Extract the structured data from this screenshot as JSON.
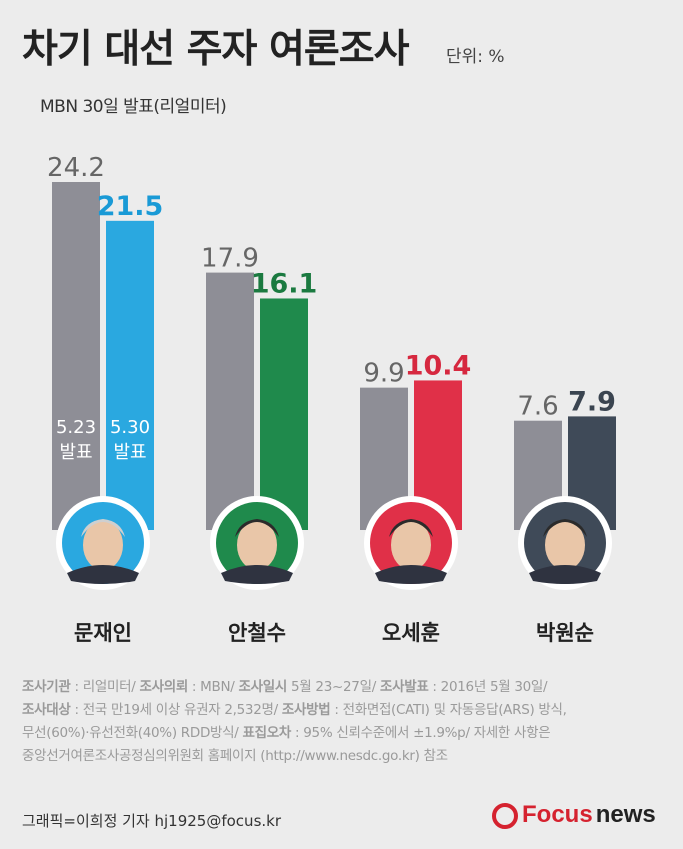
{
  "header": {
    "title": "차기 대선 주자 여론조사",
    "unit": "단위: %",
    "subtitle": "MBN 30일 발표(리얼미터)"
  },
  "chart_data": {
    "type": "bar",
    "categories": [
      "문재인",
      "안철수",
      "오세훈",
      "박원순"
    ],
    "series": [
      {
        "name": "5.23 발표",
        "values": [
          24.2,
          17.9,
          9.9,
          7.6
        ],
        "color": "#8e8e96"
      },
      {
        "name": "5.30 발표",
        "values": [
          21.5,
          16.1,
          10.4,
          7.9
        ],
        "colors": [
          "#2aa8e0",
          "#1f8a4c",
          "#e03048",
          "#3f4a58"
        ]
      }
    ],
    "inbar_labels": [
      [
        "5.23",
        "발표"
      ],
      [
        "5.30",
        "발표"
      ]
    ],
    "label_colors": [
      "#1a9ad6",
      "#1b7a40",
      "#d6283f",
      "#3a4450"
    ],
    "ylim": [
      0,
      24.2
    ]
  },
  "notes": {
    "agency_label": "조사기관",
    "agency": "리얼미터/",
    "client_label": "조사의뢰",
    "client": "MBN/",
    "dates_label": "조사일시",
    "dates": "5월 23~27일/",
    "release_label": "조사발표",
    "release": "2016년 5월 30일/",
    "target_label": "조사대상",
    "target": "전국 만19세 이상 유권자 2,532명/",
    "method_label": "조사방법",
    "method": "전화면접(CATI) 및 자동응답(ARS) 방식,",
    "method2": "무선(60%)·유선전화(40%) RDD방식/",
    "error_label": "표집오차",
    "error": "95% 신뢰수준에서 ±1.9%p/ 자세한 사항은",
    "more": "중앙선거여론조사공정심의위원회 홈페이지 (http://www.nesdc.go.kr) 참조"
  },
  "footer": {
    "credit": "그래픽=이희정 기자 hj1925@focus.kr",
    "logo_focus": "Focus",
    "logo_news": "news"
  }
}
